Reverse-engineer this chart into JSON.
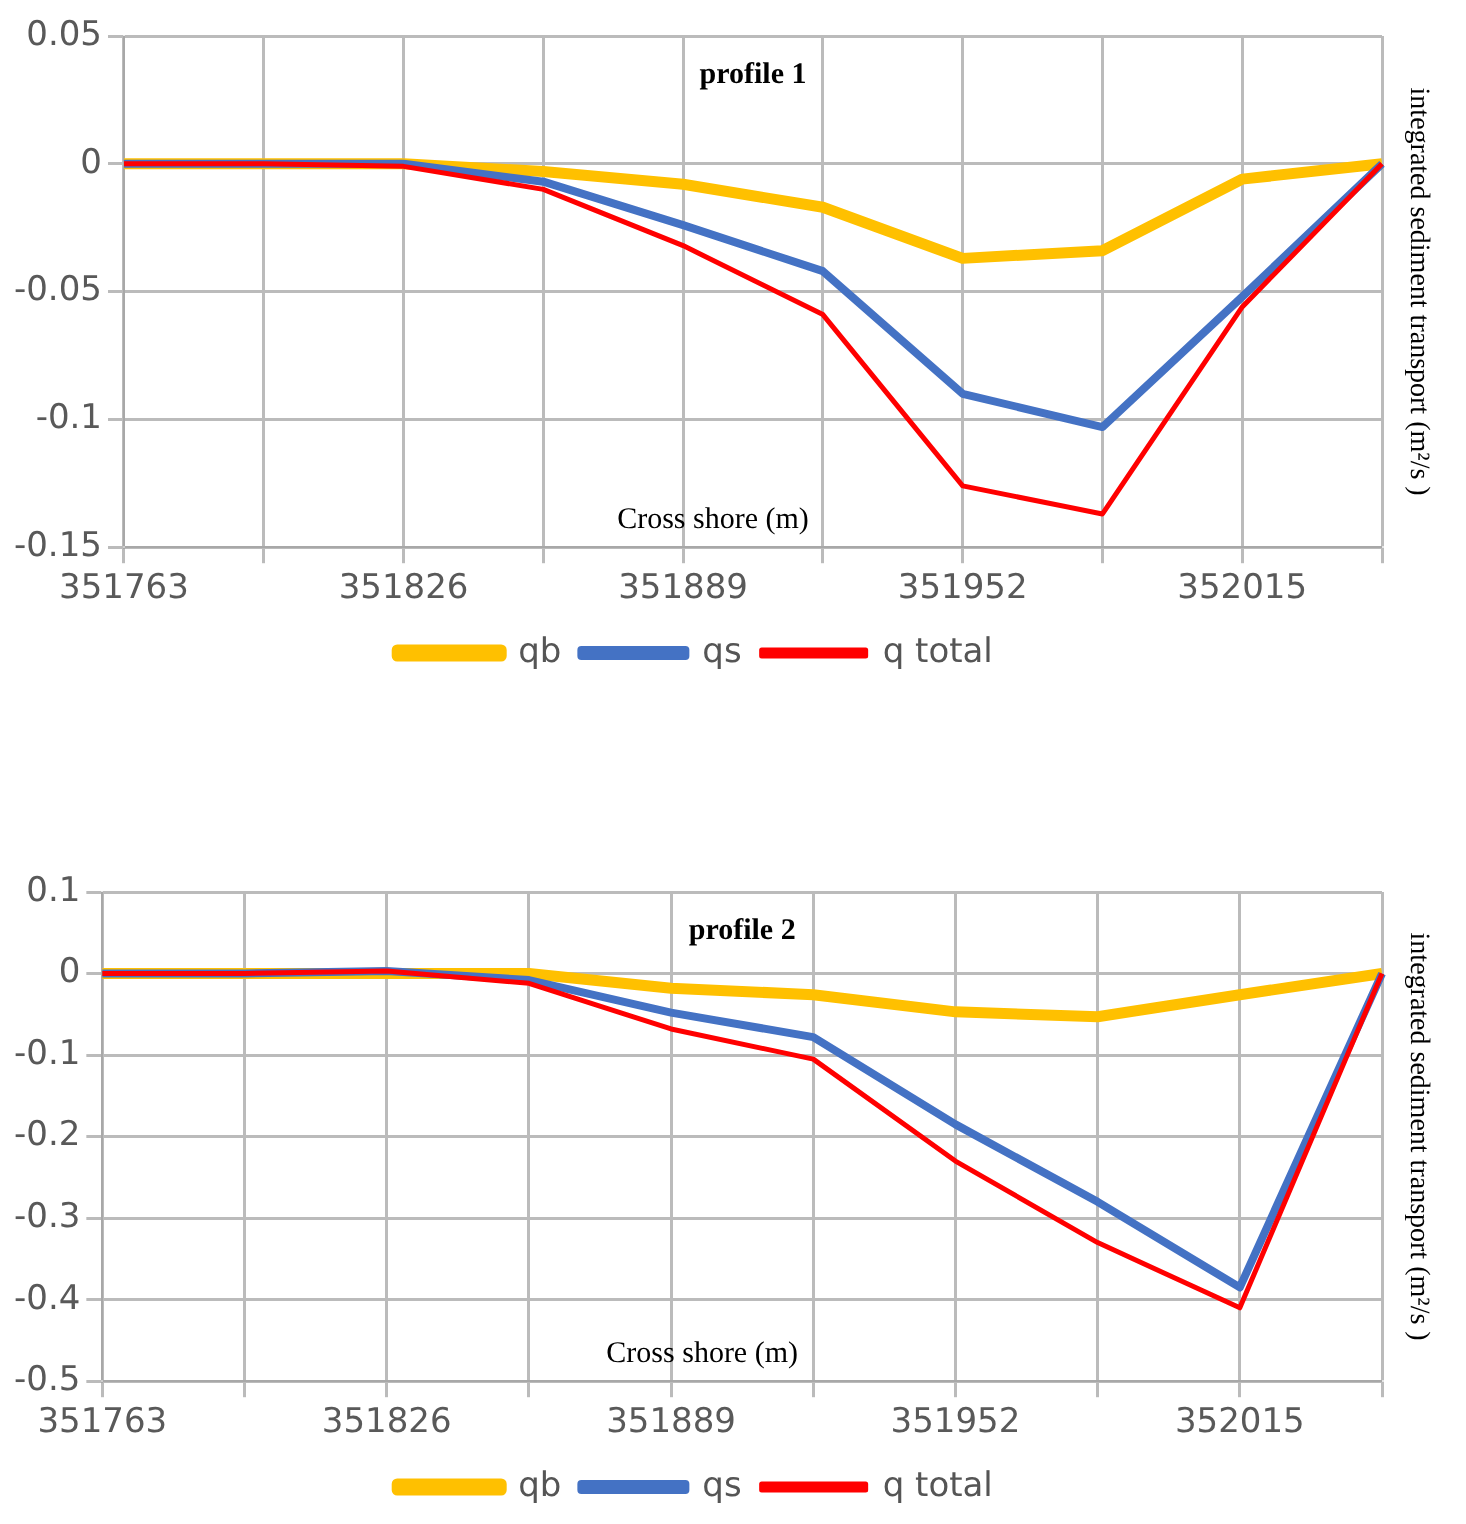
{
  "chart_data": [
    {
      "type": "line",
      "title": "profile 1",
      "xlabel": "Cross shore (m)",
      "ylabel": "integrated sediment transport (m²/s )",
      "categories": [
        "351763",
        null,
        "351826",
        null,
        "351889",
        null,
        "351952",
        null,
        "352015",
        null
      ],
      "series": [
        {
          "name": "qb",
          "color": "#ffc000",
          "values": [
            0,
            0,
            0,
            -0.003,
            -0.008,
            -0.017,
            -0.037,
            -0.034,
            -0.006,
            0
          ]
        },
        {
          "name": "qs",
          "color": "#4472c4",
          "values": [
            0,
            0,
            0,
            -0.007,
            -0.024,
            -0.042,
            -0.09,
            -0.103,
            -0.052,
            0
          ]
        },
        {
          "name": "q total",
          "color": "#ff0000",
          "values": [
            0,
            0,
            -0.001,
            -0.01,
            -0.032,
            -0.059,
            -0.126,
            -0.137,
            -0.056,
            0
          ]
        }
      ],
      "ylim": [
        -0.15,
        0.05
      ],
      "yticks": [
        -0.15,
        -0.1,
        -0.05,
        0,
        0.05
      ],
      "grid": true,
      "legend": "bottom",
      "marker": "none",
      "line_style": "solid"
    },
    {
      "type": "line",
      "title": "profile 2",
      "xlabel": "Cross shore (m)",
      "ylabel": "integrated sediment transport (m²/s )",
      "categories": [
        "351763",
        null,
        "351826",
        null,
        "351889",
        null,
        "351952",
        null,
        "352015",
        null
      ],
      "series": [
        {
          "name": "qb",
          "color": "#ffc000",
          "values": [
            0,
            0,
            0,
            0,
            -0.018,
            -0.026,
            -0.047,
            -0.053,
            -0.026,
            0
          ]
        },
        {
          "name": "qs",
          "color": "#4472c4",
          "values": [
            0,
            0,
            0.003,
            -0.008,
            -0.048,
            -0.078,
            -0.185,
            -0.28,
            -0.385,
            0
          ]
        },
        {
          "name": "q total",
          "color": "#ff0000",
          "values": [
            0,
            0,
            0.003,
            -0.012,
            -0.068,
            -0.105,
            -0.23,
            -0.33,
            -0.41,
            0
          ]
        }
      ],
      "ylim": [
        -0.5,
        0.1
      ],
      "yticks": [
        -0.5,
        -0.4,
        -0.3,
        -0.2,
        -0.1,
        0,
        0.1
      ],
      "grid": true,
      "legend": "bottom",
      "marker": "none",
      "line_style": "solid"
    }
  ]
}
